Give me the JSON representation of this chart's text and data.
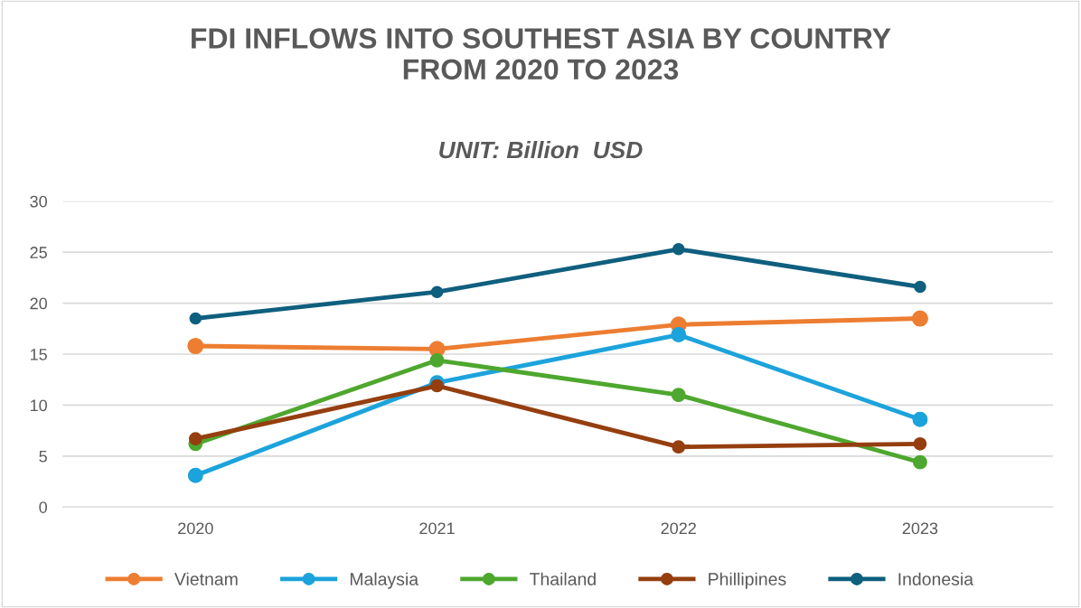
{
  "chart_data": {
    "type": "line",
    "title": "FDI INFLOWS INTO SOUTHEST ASIA BY COUNTRY\nFROM 2020 TO 2023",
    "subtitle": "UNIT: Billion  USD",
    "categories": [
      "2020",
      "2021",
      "2022",
      "2023"
    ],
    "series": [
      {
        "name": "Vietnam",
        "color": "#ed7d31",
        "values": [
          15.8,
          15.5,
          17.9,
          18.5
        ]
      },
      {
        "name": "Malaysia",
        "color": "#1ca3dc",
        "values": [
          3.1,
          12.2,
          16.9,
          8.6
        ]
      },
      {
        "name": "Thailand",
        "color": "#4ea72e",
        "values": [
          6.2,
          14.4,
          11.0,
          4.4
        ]
      },
      {
        "name": "Phillipines",
        "color": "#953e0f",
        "values": [
          6.7,
          11.9,
          5.9,
          6.2
        ]
      },
      {
        "name": "Indonesia",
        "color": "#0f5f7e",
        "values": [
          18.5,
          21.1,
          25.3,
          21.6
        ]
      }
    ],
    "ylim": [
      0,
      30
    ],
    "yticks": [
      0,
      5,
      10,
      15,
      20,
      25,
      30
    ],
    "grid": "y",
    "legend": "bottom",
    "marker": "circle",
    "line_style": "solid"
  }
}
